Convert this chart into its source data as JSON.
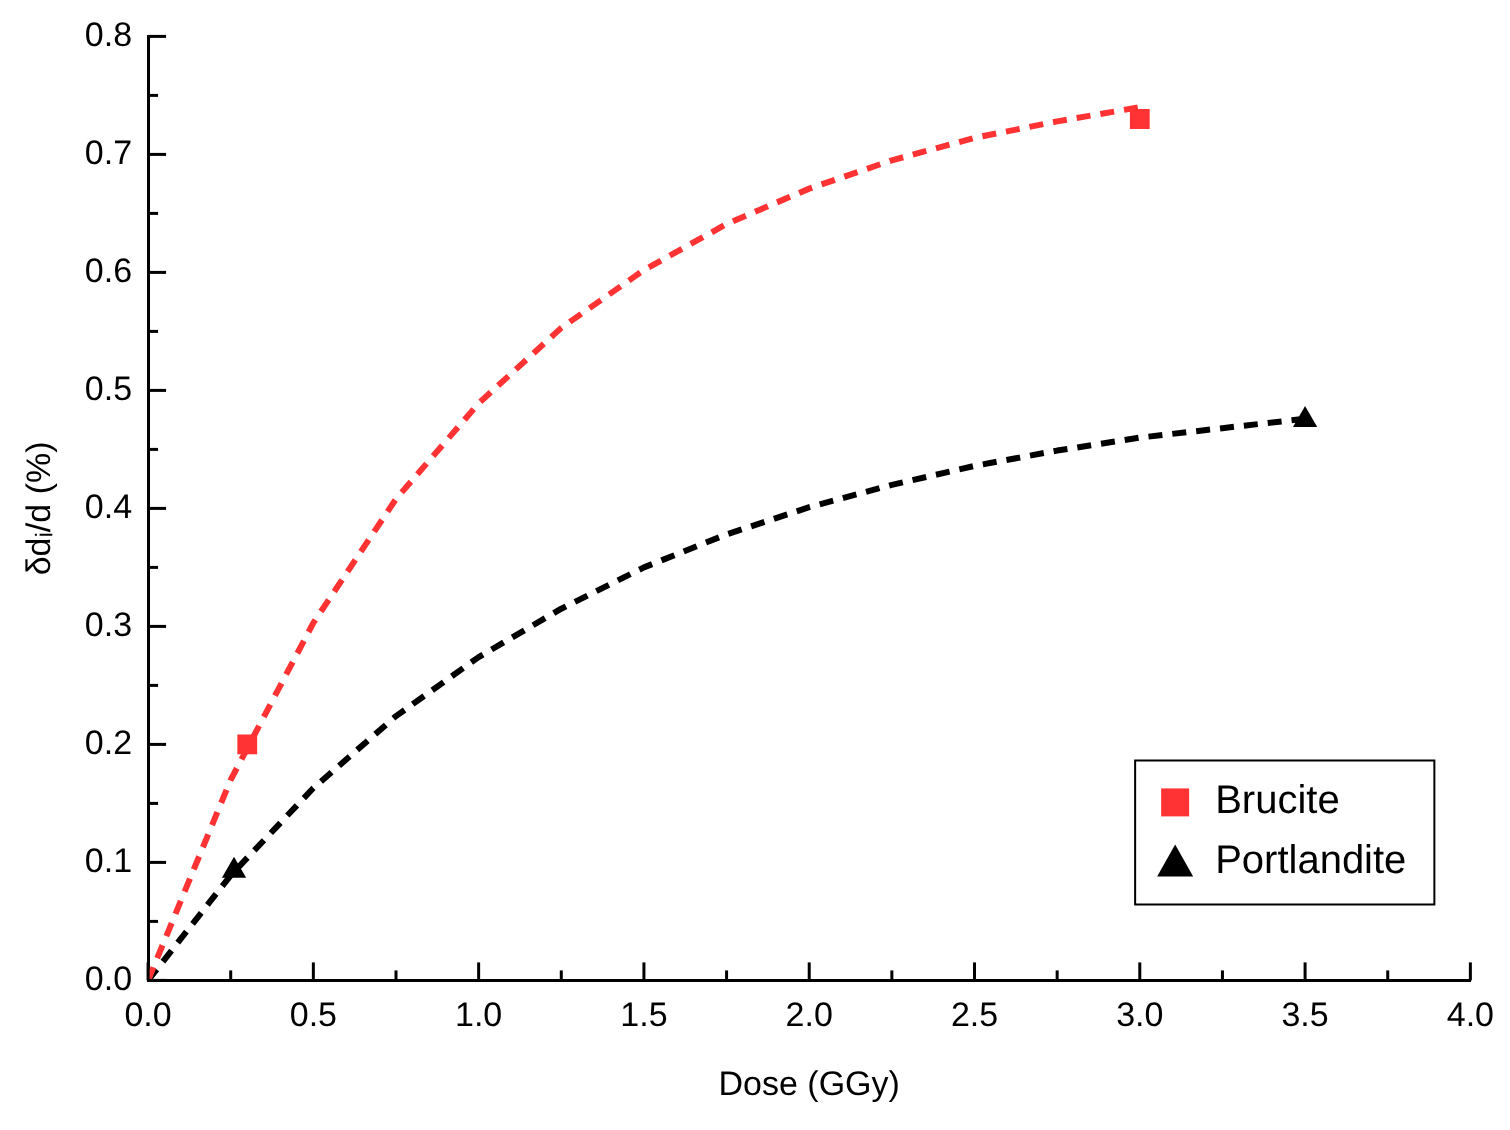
{
  "chart_data": {
    "type": "scatter",
    "xlabel": "Dose (GGy)",
    "ylabel": "δdᵢ/d (%)",
    "xlim": [
      0,
      4
    ],
    "ylim": [
      0,
      0.8
    ],
    "xticks": [
      {
        "value": 0,
        "label": "0.0"
      },
      {
        "value": 0.25,
        "label": null
      },
      {
        "value": 0.5,
        "label": "0.5"
      },
      {
        "value": 0.75,
        "label": null
      },
      {
        "value": 1,
        "label": "1.0"
      },
      {
        "value": 1.25,
        "label": null
      },
      {
        "value": 1.5,
        "label": "1.5"
      },
      {
        "value": 1.75,
        "label": null
      },
      {
        "value": 2,
        "label": "2.0"
      },
      {
        "value": 2.25,
        "label": null
      },
      {
        "value": 2.5,
        "label": "2.5"
      },
      {
        "value": 2.75,
        "label": null
      },
      {
        "value": 3,
        "label": "3.0"
      },
      {
        "value": 3.25,
        "label": null
      },
      {
        "value": 3.5,
        "label": "3.5"
      },
      {
        "value": 3.75,
        "label": null
      },
      {
        "value": 4,
        "label": "4.0"
      }
    ],
    "yticks": [
      {
        "value": 0,
        "label": "0.0"
      },
      {
        "value": 0.05,
        "label": null
      },
      0.1,
      {
        "value": 0.15,
        "label": null
      },
      0.2,
      {
        "value": 0.25,
        "label": null
      },
      0.3,
      {
        "value": 0.35,
        "label": null
      },
      0.4,
      {
        "value": 0.45,
        "label": null
      },
      0.5,
      {
        "value": 0.55,
        "label": null
      },
      0.6,
      {
        "value": 0.65,
        "label": null
      },
      0.7,
      {
        "value": 0.75,
        "label": null
      },
      0.8
    ],
    "grid": false,
    "legend": "bottom right",
    "series": [
      {
        "type": "line",
        "color": "#ff3333",
        "line_style": "dashed",
        "marker": "none",
        "x": [
          0,
          0.25,
          0.5,
          0.75,
          1,
          1.25,
          1.5,
          1.75,
          2,
          2.25,
          2.5,
          2.75,
          3
        ],
        "values": [
          0,
          0.17,
          0.303,
          0.408,
          0.489,
          0.553,
          0.602,
          0.641,
          0.671,
          0.695,
          0.714,
          0.728,
          0.74
        ]
      },
      {
        "type": "line",
        "color": "#000000",
        "line_style": "dashed",
        "marker": "none",
        "x": [
          0,
          0.25,
          0.5,
          0.75,
          1,
          1.25,
          1.5,
          1.75,
          2,
          2.25,
          2.5,
          2.75,
          3,
          3.25,
          3.5
        ],
        "values": [
          0,
          0.089,
          0.163,
          0.224,
          0.274,
          0.315,
          0.35,
          0.378,
          0.401,
          0.42,
          0.436,
          0.449,
          0.46,
          0.468,
          0.476
        ]
      },
      {
        "type": "scatter",
        "name": "Brucite",
        "color": "#ff3333",
        "marker": "square",
        "x": [
          0.3,
          3
        ],
        "values": [
          0.2,
          0.73
        ]
      },
      {
        "type": "scatter",
        "name": "Portlandite",
        "color": "#000000",
        "marker": "triangle",
        "x": [
          0.26,
          3.5
        ],
        "values": [
          0.093,
          0.475
        ]
      }
    ]
  }
}
